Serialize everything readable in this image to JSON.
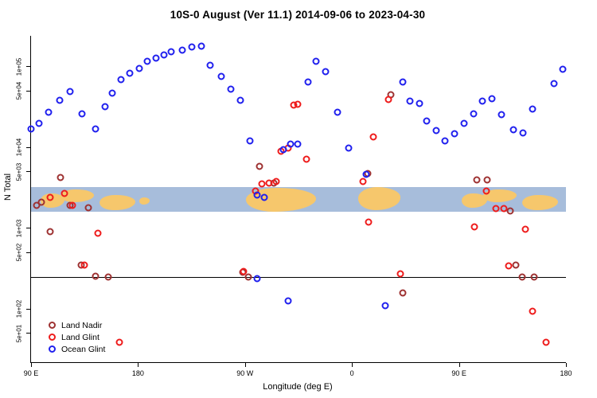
{
  "title": "10S-0 August (Ver 11.1)   2014-09-06 to 2023-04-30",
  "chart_data": {
    "type": "scatter",
    "title": "10S-0 August (Ver 11.1)   2014-09-06 to 2023-04-30",
    "xlabel": "Longitude (deg E)",
    "ylabel": "N Total",
    "x_axis_wraps": "90E eastward to 180, 90W, 0, 90E, 180",
    "xlim": [
      90,
      540
    ],
    "ylim": [
      22,
      240000
    ],
    "y_scale": "log",
    "grid": "off",
    "legend_position": "bottom-left",
    "x_ticks": [
      {
        "label": "90 E",
        "value": 90
      },
      {
        "label": "180",
        "value": 180
      },
      {
        "label": "90 W",
        "value": 270
      },
      {
        "label": "0",
        "value": 360
      },
      {
        "label": "90 E",
        "value": 450
      },
      {
        "label": "180",
        "value": 540
      }
    ],
    "y_ticks": [
      {
        "label": "5e+01",
        "value": 50
      },
      {
        "label": "1e+02",
        "value": 100
      },
      {
        "label": "5e+02",
        "value": 500
      },
      {
        "label": "1e+03",
        "value": 1000
      },
      {
        "label": "5e+03",
        "value": 5000
      },
      {
        "label": "1e+04",
        "value": 10000
      },
      {
        "label": "5e+04",
        "value": 50000
      },
      {
        "label": "1e+05",
        "value": 100000
      }
    ],
    "hline": 250,
    "map_strip": {
      "description": "world map band for latitude 10S-0 drawn across plot",
      "value_range": [
        1600,
        3200
      ],
      "ocean_color": "#a7bddb",
      "land_color": "#f6c76c",
      "land_patches": [
        [
          0.018,
          0.062,
          0.25,
          0.85
        ],
        [
          0.055,
          0.118,
          0.08,
          0.62
        ],
        [
          0.128,
          0.195,
          0.3,
          0.95
        ],
        [
          0.203,
          0.222,
          0.4,
          0.7
        ],
        [
          0.402,
          0.532,
          0.03,
          1.0
        ],
        [
          0.612,
          0.69,
          0.0,
          0.92
        ],
        [
          0.805,
          0.852,
          0.25,
          0.85
        ],
        [
          0.845,
          0.908,
          0.08,
          0.62
        ],
        [
          0.918,
          0.985,
          0.3,
          0.95
        ]
      ]
    },
    "series": [
      {
        "id": "land-nadir",
        "name": "Land Nadir",
        "color": "#9e3232",
        "points": [
          [
            95,
            1900
          ],
          [
            99,
            2100
          ],
          [
            106,
            900
          ],
          [
            115,
            4200
          ],
          [
            123,
            1900
          ],
          [
            132,
            350
          ],
          [
            138,
            1800
          ],
          [
            144,
            255
          ],
          [
            155,
            250
          ],
          [
            268,
            285
          ],
          [
            273,
            250
          ],
          [
            282,
            5800
          ],
          [
            294,
            3600
          ],
          [
            373,
            4800
          ],
          [
            393,
            45000
          ],
          [
            403,
            160
          ],
          [
            465,
            4000
          ],
          [
            474,
            4000
          ],
          [
            493,
            1650
          ],
          [
            498,
            350
          ],
          [
            503,
            250
          ],
          [
            513,
            250
          ]
        ]
      },
      {
        "id": "land-glint",
        "name": "Land Glint",
        "color": "#ee1c1c",
        "points": [
          [
            106,
            2400
          ],
          [
            118,
            2700
          ],
          [
            125,
            1900
          ],
          [
            135,
            350
          ],
          [
            146,
            870
          ],
          [
            164,
            39
          ],
          [
            269,
            290
          ],
          [
            279,
            2900
          ],
          [
            284,
            3500
          ],
          [
            290,
            3600
          ],
          [
            296,
            3800
          ],
          [
            300,
            8900
          ],
          [
            306,
            9700
          ],
          [
            311,
            33000
          ],
          [
            314,
            34500
          ],
          [
            322,
            7100
          ],
          [
            369,
            3800
          ],
          [
            374,
            1200
          ],
          [
            378,
            13500
          ],
          [
            391,
            39000
          ],
          [
            401,
            270
          ],
          [
            463,
            1050
          ],
          [
            473,
            2900
          ],
          [
            481,
            1750
          ],
          [
            488,
            1750
          ],
          [
            492,
            345
          ],
          [
            506,
            980
          ],
          [
            512,
            93
          ],
          [
            523,
            39
          ]
        ]
      },
      {
        "id": "ocean-glint",
        "name": "Ocean Glint",
        "color": "#2020ee",
        "points": [
          [
            90,
            17000
          ],
          [
            97,
            20000
          ],
          [
            105,
            27000
          ],
          [
            114,
            38000
          ],
          [
            123,
            49000
          ],
          [
            133,
            26000
          ],
          [
            144,
            17000
          ],
          [
            152,
            32000
          ],
          [
            158,
            47000
          ],
          [
            166,
            69000
          ],
          [
            173,
            82000
          ],
          [
            181,
            94000
          ],
          [
            188,
            117000
          ],
          [
            195,
            128000
          ],
          [
            202,
            140000
          ],
          [
            208,
            153000
          ],
          [
            217,
            160000
          ],
          [
            225,
            175000
          ],
          [
            233,
            180000
          ],
          [
            241,
            103000
          ],
          [
            250,
            75000
          ],
          [
            258,
            53000
          ],
          [
            266,
            38000
          ],
          [
            274,
            12000
          ],
          [
            280,
            2600
          ],
          [
            286,
            2400
          ],
          [
            280,
            240
          ],
          [
            302,
            9300
          ],
          [
            306,
            125
          ],
          [
            308,
            11000
          ],
          [
            314,
            11000
          ],
          [
            323,
            64000
          ],
          [
            330,
            115000
          ],
          [
            338,
            86000
          ],
          [
            348,
            27000
          ],
          [
            357,
            9900
          ],
          [
            372,
            4600
          ],
          [
            388,
            110
          ],
          [
            403,
            64000
          ],
          [
            409,
            37000
          ],
          [
            417,
            35000
          ],
          [
            423,
            21000
          ],
          [
            431,
            16000
          ],
          [
            438,
            12000
          ],
          [
            446,
            14600
          ],
          [
            454,
            19800
          ],
          [
            462,
            26000
          ],
          [
            470,
            37000
          ],
          [
            478,
            40000
          ],
          [
            486,
            25500
          ],
          [
            496,
            16500
          ],
          [
            504,
            15200
          ],
          [
            512,
            30000
          ],
          [
            530,
            62000
          ],
          [
            537,
            92000
          ]
        ]
      }
    ]
  }
}
